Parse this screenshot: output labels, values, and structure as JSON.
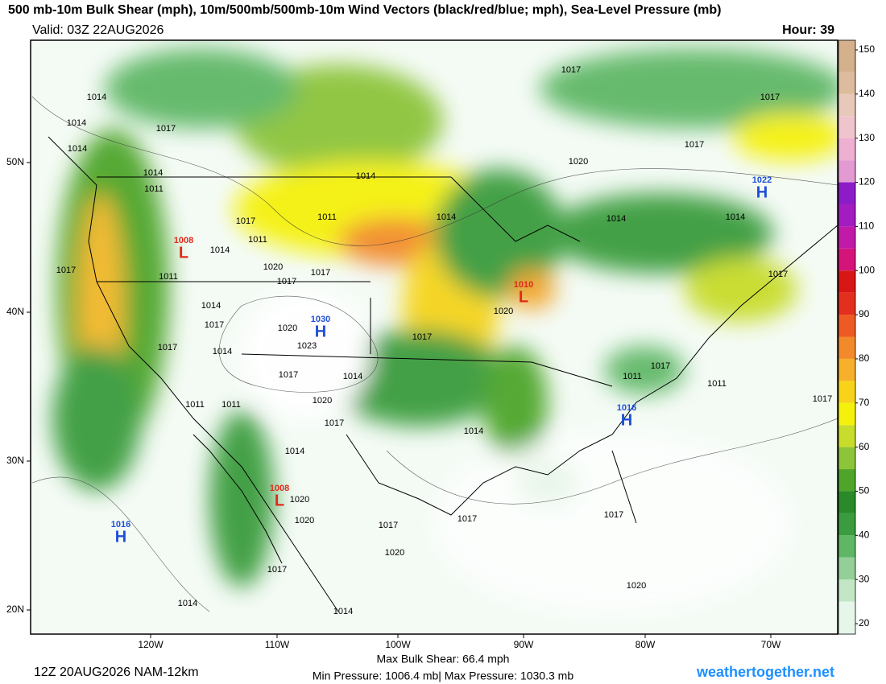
{
  "header": {
    "title": "500 mb-10m Bulk Shear (mph), 10m/500mb/500mb-10m Wind Vectors (black/red/blue; mph), Sea-Level Pressure (mb)",
    "valid": "Valid: 03Z 22AUG2026",
    "hour": "Hour: 39"
  },
  "map": {
    "lat_labels": [
      "50N",
      "40N",
      "30N",
      "20N"
    ],
    "lon_labels": [
      "120W",
      "110W",
      "100W",
      "90W",
      "80W",
      "70W"
    ],
    "colorbar": {
      "ylim": [
        20,
        150
      ],
      "ticks": [
        20,
        30,
        40,
        50,
        60,
        70,
        80,
        90,
        100,
        110,
        120,
        130,
        140,
        150
      ],
      "colors": [
        "#e6f7ea",
        "#c2e6c6",
        "#93cf97",
        "#5fb766",
        "#3a9c3e",
        "#2a8a2a",
        "#4ea52a",
        "#8cc43a",
        "#c8dc2c",
        "#f5f10c",
        "#f7d41a",
        "#f6b02a",
        "#f28a2c",
        "#ee5a24",
        "#e3301e",
        "#d91616",
        "#d4147a",
        "#c21aa8",
        "#a21cc0",
        "#8c1cc8",
        "#e39ad2",
        "#edb0d0",
        "#f0c4cc",
        "#e8c8b8",
        "#dcbc9c",
        "#d4b08c"
      ]
    },
    "pressure_centers": [
      {
        "type": "H",
        "value": 1030
      },
      {
        "type": "H",
        "value": 1016
      },
      {
        "type": "H",
        "value": 1022
      },
      {
        "type": "H",
        "value": 1016
      },
      {
        "type": "L",
        "value": 1008
      },
      {
        "type": "L",
        "value": 1010
      },
      {
        "type": "L",
        "value": 1008
      }
    ],
    "isobar_labels": [
      1014,
      1014,
      1017,
      1014,
      1014,
      1011,
      1017,
      1011,
      1017,
      1017,
      1014,
      1020,
      1017,
      1011,
      1014,
      1017,
      1017,
      1014,
      1020,
      1023,
      1017,
      1014,
      1011,
      1011,
      1020,
      1017,
      1014,
      1014,
      1017,
      1020,
      1014,
      1017,
      1014,
      1011,
      1014,
      1017,
      1020,
      1017,
      1014,
      1017,
      1017,
      1011,
      1011,
      1017,
      1020,
      1020,
      1017,
      1020,
      1017,
      1017,
      1020,
      1014,
      1014,
      1017
    ]
  },
  "footer": {
    "run": "12Z 20AUG2026 NAM-12km",
    "max_shear": "Max Bulk Shear:  66.4 mph",
    "pressure": "Min Pressure: 1006.4 mb| Max Pressure: 1030.3 mb",
    "site": "weathertogether.net"
  }
}
